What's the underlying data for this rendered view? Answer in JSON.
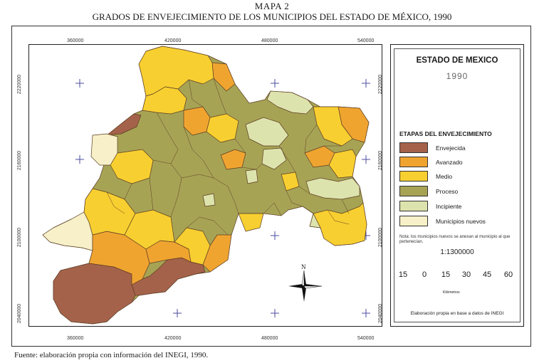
{
  "figure": {
    "number": "MAPA 2",
    "title": "GRADOS DE ENVEJECIMIENTO DE LOS MUNICIPIOS DEL ESTADO DE MÉXICO, 1990"
  },
  "axes": {
    "top_ticks": [
      "360000",
      "420000",
      "480000",
      "540000"
    ],
    "bottom_ticks": [
      "360000",
      "420000",
      "480000",
      "540000"
    ],
    "left_ticks": [
      "2220000",
      "2160000",
      "2100000",
      "2040000"
    ],
    "right_ticks": [
      "2220000",
      "2160000",
      "2100000",
      "2040000"
    ]
  },
  "legend": {
    "state": "ESTADO DE MEXICO",
    "year": "1990",
    "heading": "ETAPAS DEL ENVEJECIMIENTO",
    "categories": [
      {
        "label": "Envejecida",
        "color": "#a5624a"
      },
      {
        "label": "Avanzado",
        "color": "#f0a430"
      },
      {
        "label": "Medio",
        "color": "#f8cf30"
      },
      {
        "label": "Proceso",
        "color": "#a7a355"
      },
      {
        "label": "Incipiente",
        "color": "#dde3ad"
      },
      {
        "label": "Municipios nuevos",
        "color": "#f7f0c8"
      }
    ],
    "note": "Nota: los municipios nuevos se anexan al municipio al que pertenecían.",
    "scale": "1:1300000",
    "scalebar_numbers": [
      "15",
      "0",
      "15",
      "30",
      "45",
      "60"
    ],
    "scalebar_unit": "Kilómetros",
    "north_label": "N",
    "credit": "Elaboración propia en base a datos de INEGI"
  },
  "source": "Fuente: elaboración propia con información del INEGI, 1990."
}
